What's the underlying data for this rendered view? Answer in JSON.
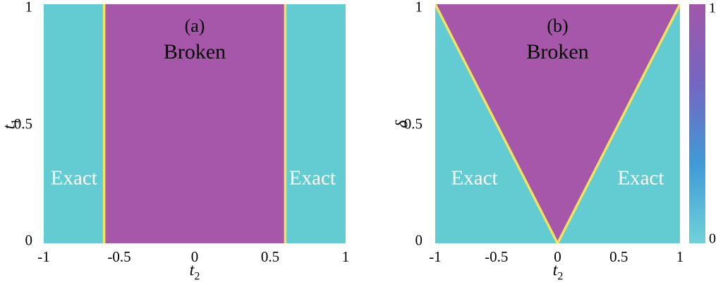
{
  "figure": {
    "background": "#ffffff",
    "description": "Two-panel phase diagram with Exact and Broken phases separated by yellow boundary lines, plus shared colorbar"
  },
  "chart_data": [
    {
      "type": "heatmap",
      "panel_label": "(a)",
      "xlabel": {
        "base": "t",
        "sub": "2"
      },
      "ylabel": {
        "base": "t",
        "sub": "1"
      },
      "xlim": [
        -1,
        1
      ],
      "ylim": [
        0,
        1
      ],
      "xticks": [
        "-1",
        "-0.5",
        "0",
        "0.5",
        "1"
      ],
      "yticks_top_to_bottom": [
        "1",
        "0.5",
        "0"
      ],
      "regions": [
        {
          "name": "Exact",
          "value": 0,
          "condition": "t2 <= -0.6"
        },
        {
          "name": "Broken",
          "value": 1,
          "condition": "-0.6 <= t2 <= 0.6"
        },
        {
          "name": "Exact",
          "value": 0,
          "condition": "t2 >= 0.6"
        }
      ],
      "broken_polygon": [
        [
          -0.6,
          0
        ],
        [
          -0.6,
          1
        ],
        [
          0.6,
          1
        ],
        [
          0.6,
          0
        ]
      ],
      "boundary_lines": [
        [
          [
            -0.6,
            0
          ],
          [
            -0.6,
            1
          ]
        ],
        [
          [
            0.6,
            0
          ],
          [
            0.6,
            1
          ]
        ]
      ],
      "annotations": {
        "panel": "(a)",
        "broken": "Broken",
        "exact_left": "Exact",
        "exact_right": "Exact"
      },
      "colors": {
        "exact": "#63cbd2",
        "broken": "#a757a9",
        "boundary": "#f3e35b"
      }
    },
    {
      "type": "heatmap",
      "panel_label": "(b)",
      "xlabel": {
        "base": "t",
        "sub": "2"
      },
      "ylabel": {
        "base": "δ",
        "sub": ""
      },
      "xlim": [
        -1,
        1
      ],
      "ylim": [
        0,
        1
      ],
      "xticks": [
        "-1",
        "-0.5",
        "0",
        "0.5",
        "1"
      ],
      "yticks_top_to_bottom": [
        "1",
        "0.5",
        "0"
      ],
      "regions": [
        {
          "name": "Exact",
          "value": 0,
          "condition": "delta < |t2|"
        },
        {
          "name": "Broken",
          "value": 1,
          "condition": "delta > |t2|"
        }
      ],
      "broken_polygon": [
        [
          -1,
          1
        ],
        [
          1,
          1
        ],
        [
          0,
          0
        ]
      ],
      "boundary_lines": [
        [
          [
            -1,
            1
          ],
          [
            0,
            0
          ]
        ],
        [
          [
            0,
            0
          ],
          [
            1,
            1
          ]
        ]
      ],
      "annotations": {
        "panel": "(b)",
        "broken": "Broken",
        "exact_left": "Exact",
        "exact_right": "Exact"
      },
      "colors": {
        "exact": "#63cbd2",
        "broken": "#a757a9",
        "boundary": "#f3e35b"
      }
    }
  ],
  "colorbar": {
    "min_label": "0",
    "max_label": "1",
    "stops_bottom_to_top": [
      "#6fd2d8",
      "#3f9ad6",
      "#7466c1",
      "#a157a9"
    ]
  }
}
